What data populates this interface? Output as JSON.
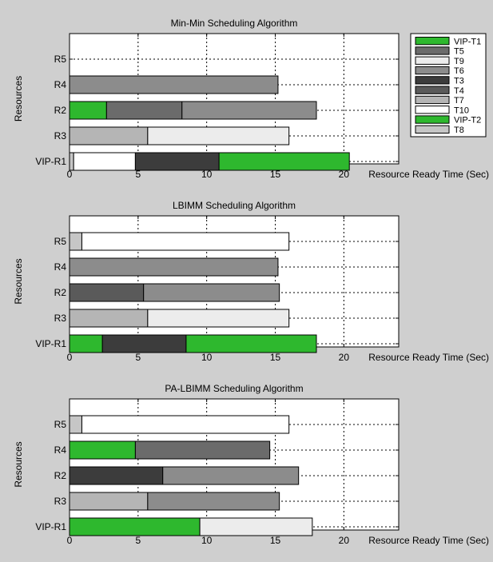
{
  "chart_data": [
    {
      "type": "bar",
      "orientation": "horizontal-stacked",
      "title": "Min-Min Scheduling Algorithm",
      "xlabel": "Resource Ready Time (Sec)",
      "ylabel": "Resources",
      "xlim": [
        0,
        24
      ],
      "xticks": [
        "0",
        "5",
        "10",
        "15",
        "20"
      ],
      "grid": true,
      "legend_position": "right",
      "legend": [
        {
          "label": "VIP-T1",
          "color": "#2eb82e"
        },
        {
          "label": "T5",
          "color": "#6b6b6b"
        },
        {
          "label": "T9",
          "color": "#ececec"
        },
        {
          "label": "T6",
          "color": "#8c8c8c"
        },
        {
          "label": "T3",
          "color": "#3c3c3c"
        },
        {
          "label": "T4",
          "color": "#5a5a5a"
        },
        {
          "label": "T7",
          "color": "#b5b5b5"
        },
        {
          "label": "T10",
          "color": "#ffffff"
        },
        {
          "label": "VIP-T2",
          "color": "#2eb82e"
        },
        {
          "label": "T8",
          "color": "#c6c6c6"
        }
      ],
      "rows": [
        {
          "resource": "R5",
          "segments": []
        },
        {
          "resource": "R4",
          "segments": [
            {
              "start": 0,
              "end": 15.2,
              "color": "#8c8c8c"
            }
          ]
        },
        {
          "resource": "R2",
          "segments": [
            {
              "start": 0,
              "end": 2.7,
              "color": "#2eb82e"
            },
            {
              "start": 2.7,
              "end": 8.2,
              "color": "#6b6b6b"
            },
            {
              "start": 8.2,
              "end": 18.0,
              "color": "#8c8c8c"
            }
          ]
        },
        {
          "resource": "R3",
          "segments": [
            {
              "start": 0,
              "end": 5.7,
              "color": "#b5b5b5"
            },
            {
              "start": 5.7,
              "end": 16.0,
              "color": "#ececec"
            }
          ]
        },
        {
          "resource": "VIP-R1",
          "segments": [
            {
              "start": 0,
              "end": 0.3,
              "color": "#c6c6c6"
            },
            {
              "start": 0.3,
              "end": 4.8,
              "color": "#ffffff"
            },
            {
              "start": 4.8,
              "end": 10.9,
              "color": "#3c3c3c"
            },
            {
              "start": 10.9,
              "end": 20.4,
              "color": "#2eb82e"
            }
          ]
        }
      ]
    },
    {
      "type": "bar",
      "orientation": "horizontal-stacked",
      "title": "LBIMM Scheduling Algorithm",
      "xlabel": "Resource Ready Time (Sec)",
      "ylabel": "Resources",
      "xlim": [
        0,
        24
      ],
      "xticks": [
        "0",
        "5",
        "10",
        "15",
        "20"
      ],
      "grid": true,
      "rows": [
        {
          "resource": "R5",
          "segments": [
            {
              "start": 0,
              "end": 0.9,
              "color": "#c6c6c6"
            },
            {
              "start": 0.9,
              "end": 16.0,
              "color": "#ffffff"
            }
          ]
        },
        {
          "resource": "R4",
          "segments": [
            {
              "start": 0,
              "end": 15.2,
              "color": "#8c8c8c"
            }
          ]
        },
        {
          "resource": "R2",
          "segments": [
            {
              "start": 0,
              "end": 5.4,
              "color": "#5a5a5a"
            },
            {
              "start": 5.4,
              "end": 15.3,
              "color": "#8c8c8c"
            }
          ]
        },
        {
          "resource": "R3",
          "segments": [
            {
              "start": 0,
              "end": 5.7,
              "color": "#b5b5b5"
            },
            {
              "start": 5.7,
              "end": 16.0,
              "color": "#ececec"
            }
          ]
        },
        {
          "resource": "VIP-R1",
          "segments": [
            {
              "start": 0,
              "end": 2.4,
              "color": "#2eb82e"
            },
            {
              "start": 2.4,
              "end": 8.5,
              "color": "#3c3c3c"
            },
            {
              "start": 8.5,
              "end": 18.0,
              "color": "#2eb82e"
            }
          ]
        }
      ]
    },
    {
      "type": "bar",
      "orientation": "horizontal-stacked",
      "title": "PA-LBIMM Scheduling Algorithm",
      "xlabel": "Resource Ready Time (Sec)",
      "ylabel": "Resources",
      "xlim": [
        0,
        24
      ],
      "xticks": [
        "0",
        "5",
        "10",
        "15",
        "20"
      ],
      "grid": true,
      "rows": [
        {
          "resource": "R5",
          "segments": [
            {
              "start": 0,
              "end": 0.9,
              "color": "#c6c6c6"
            },
            {
              "start": 0.9,
              "end": 16.0,
              "color": "#ffffff"
            }
          ]
        },
        {
          "resource": "R4",
          "segments": [
            {
              "start": 0,
              "end": 4.8,
              "color": "#2eb82e"
            },
            {
              "start": 4.8,
              "end": 14.6,
              "color": "#6b6b6b"
            }
          ]
        },
        {
          "resource": "R2",
          "segments": [
            {
              "start": 0,
              "end": 6.8,
              "color": "#3c3c3c"
            },
            {
              "start": 6.8,
              "end": 16.7,
              "color": "#8c8c8c"
            }
          ]
        },
        {
          "resource": "R3",
          "segments": [
            {
              "start": 0,
              "end": 5.7,
              "color": "#b5b5b5"
            },
            {
              "start": 5.7,
              "end": 15.3,
              "color": "#8c8c8c"
            }
          ]
        },
        {
          "resource": "VIP-R1",
          "segments": [
            {
              "start": 0,
              "end": 9.5,
              "color": "#2eb82e"
            },
            {
              "start": 9.5,
              "end": 17.7,
              "color": "#ececec"
            }
          ]
        }
      ]
    }
  ]
}
